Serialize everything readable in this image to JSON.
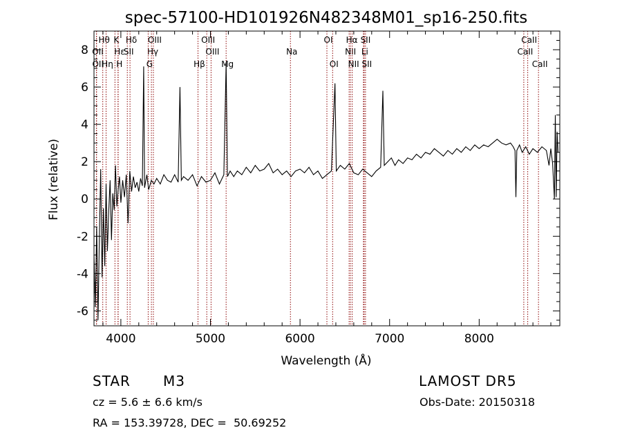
{
  "chart_data": {
    "type": "line",
    "title": "spec-57100-HD101926N482348M01_sp16-250.fits",
    "xlabel": "Wavelength (Å)",
    "ylabel": "Flux (relative)",
    "xlim": [
      3700,
      8900
    ],
    "ylim": [
      -6.8,
      9.0
    ],
    "x_ticks": [
      4000,
      5000,
      6000,
      7000,
      8000
    ],
    "y_ticks": [
      -6,
      -4,
      -2,
      0,
      2,
      4,
      6,
      8
    ],
    "grid": false,
    "legend": "none",
    "line_color": "#000000",
    "marker_color": "#8b0000",
    "series": [
      {
        "points": [
          [
            3700,
            -3.0
          ],
          [
            3715,
            -5.8
          ],
          [
            3730,
            -1.5
          ],
          [
            3745,
            -6.5
          ],
          [
            3760,
            -2.0
          ],
          [
            3775,
            1.6
          ],
          [
            3790,
            -4.2
          ],
          [
            3805,
            -0.5
          ],
          [
            3820,
            -3.6
          ],
          [
            3835,
            0.8
          ],
          [
            3850,
            -2.8
          ],
          [
            3865,
            -0.6
          ],
          [
            3880,
            1.0
          ],
          [
            3895,
            -2.2
          ],
          [
            3910,
            0.3
          ],
          [
            3925,
            -0.6
          ],
          [
            3940,
            1.8
          ],
          [
            3955,
            -0.4
          ],
          [
            3970,
            0.5
          ],
          [
            3985,
            1.2
          ],
          [
            4000,
            -0.2
          ],
          [
            4020,
            1.0
          ],
          [
            4040,
            0.1
          ],
          [
            4060,
            1.3
          ],
          [
            4080,
            -1.3
          ],
          [
            4100,
            1.5
          ],
          [
            4120,
            0.4
          ],
          [
            4140,
            1.2
          ],
          [
            4160,
            0.6
          ],
          [
            4180,
            0.9
          ],
          [
            4200,
            0.4
          ],
          [
            4220,
            1.1
          ],
          [
            4240,
            0.7
          ],
          [
            4255,
            7.1
          ],
          [
            4265,
            0.6
          ],
          [
            4290,
            1.3
          ],
          [
            4310,
            0.5
          ],
          [
            4340,
            1.0
          ],
          [
            4370,
            0.8
          ],
          [
            4400,
            1.1
          ],
          [
            4440,
            0.8
          ],
          [
            4480,
            1.3
          ],
          [
            4520,
            1.0
          ],
          [
            4560,
            0.9
          ],
          [
            4600,
            1.3
          ],
          [
            4640,
            0.9
          ],
          [
            4660,
            6.0
          ],
          [
            4675,
            1.0
          ],
          [
            4700,
            1.2
          ],
          [
            4750,
            1.0
          ],
          [
            4800,
            1.3
          ],
          [
            4850,
            0.7
          ],
          [
            4900,
            1.2
          ],
          [
            4950,
            0.9
          ],
          [
            5000,
            1.0
          ],
          [
            5050,
            1.4
          ],
          [
            5100,
            0.8
          ],
          [
            5150,
            1.3
          ],
          [
            5175,
            7.3
          ],
          [
            5190,
            1.2
          ],
          [
            5220,
            1.5
          ],
          [
            5260,
            1.2
          ],
          [
            5300,
            1.5
          ],
          [
            5350,
            1.3
          ],
          [
            5400,
            1.7
          ],
          [
            5450,
            1.4
          ],
          [
            5500,
            1.8
          ],
          [
            5550,
            1.5
          ],
          [
            5600,
            1.6
          ],
          [
            5650,
            1.9
          ],
          [
            5700,
            1.4
          ],
          [
            5750,
            1.6
          ],
          [
            5800,
            1.3
          ],
          [
            5850,
            1.5
          ],
          [
            5900,
            1.2
          ],
          [
            5950,
            1.5
          ],
          [
            6000,
            1.6
          ],
          [
            6050,
            1.4
          ],
          [
            6100,
            1.7
          ],
          [
            6150,
            1.3
          ],
          [
            6200,
            1.5
          ],
          [
            6250,
            1.1
          ],
          [
            6300,
            1.3
          ],
          [
            6350,
            1.5
          ],
          [
            6390,
            6.2
          ],
          [
            6405,
            1.5
          ],
          [
            6450,
            1.8
          ],
          [
            6500,
            1.6
          ],
          [
            6550,
            1.9
          ],
          [
            6600,
            1.4
          ],
          [
            6650,
            1.3
          ],
          [
            6700,
            1.6
          ],
          [
            6750,
            1.4
          ],
          [
            6800,
            1.2
          ],
          [
            6850,
            1.5
          ],
          [
            6900,
            1.7
          ],
          [
            6925,
            5.8
          ],
          [
            6940,
            1.8
          ],
          [
            6980,
            2.0
          ],
          [
            7020,
            2.2
          ],
          [
            7060,
            1.8
          ],
          [
            7100,
            2.1
          ],
          [
            7150,
            1.9
          ],
          [
            7200,
            2.2
          ],
          [
            7250,
            2.1
          ],
          [
            7300,
            2.4
          ],
          [
            7350,
            2.2
          ],
          [
            7400,
            2.5
          ],
          [
            7450,
            2.4
          ],
          [
            7500,
            2.7
          ],
          [
            7550,
            2.5
          ],
          [
            7600,
            2.3
          ],
          [
            7650,
            2.6
          ],
          [
            7700,
            2.4
          ],
          [
            7750,
            2.7
          ],
          [
            7800,
            2.5
          ],
          [
            7850,
            2.8
          ],
          [
            7900,
            2.6
          ],
          [
            7950,
            2.9
          ],
          [
            8000,
            2.7
          ],
          [
            8050,
            2.9
          ],
          [
            8100,
            2.8
          ],
          [
            8150,
            3.0
          ],
          [
            8200,
            3.2
          ],
          [
            8250,
            3.0
          ],
          [
            8300,
            2.9
          ],
          [
            8350,
            3.0
          ],
          [
            8380,
            2.8
          ],
          [
            8400,
            2.6
          ],
          [
            8410,
            0.1
          ],
          [
            8420,
            2.6
          ],
          [
            8450,
            2.9
          ],
          [
            8480,
            2.5
          ],
          [
            8520,
            2.8
          ],
          [
            8560,
            2.4
          ],
          [
            8600,
            2.7
          ],
          [
            8650,
            2.5
          ],
          [
            8700,
            2.8
          ],
          [
            8750,
            2.6
          ],
          [
            8780,
            1.8
          ],
          [
            8800,
            2.7
          ],
          [
            8820,
            1.9
          ],
          [
            8840,
            0.0
          ],
          [
            8850,
            4.5
          ],
          [
            8860,
            0.1
          ],
          [
            8870,
            3.6
          ],
          [
            8880,
            2.5
          ]
        ]
      }
    ],
    "line_markers": [
      {
        "label": "Hθ",
        "wavelength": 3798,
        "row": 0
      },
      {
        "label": "OII",
        "wavelength": 3727,
        "row": 1
      },
      {
        "label": "OII",
        "wavelength": 3729,
        "row": 2
      },
      {
        "label": "Hη",
        "wavelength": 3835,
        "row": 2
      },
      {
        "label": "K",
        "wavelength": 3934,
        "row": 0
      },
      {
        "label": "Hε",
        "wavelength": 3970,
        "row": 1
      },
      {
        "label": "H",
        "wavelength": 3968,
        "row": 2
      },
      {
        "label": "Hδ",
        "wavelength": 4102,
        "row": 0
      },
      {
        "label": "SII",
        "wavelength": 4072,
        "row": 1
      },
      {
        "label": "OIII",
        "wavelength": 4363,
        "row": 0
      },
      {
        "label": "Hγ",
        "wavelength": 4341,
        "row": 1
      },
      {
        "label": "G",
        "wavelength": 4305,
        "row": 2
      },
      {
        "label": "OIII",
        "wavelength": 4959,
        "row": 0
      },
      {
        "label": "OIII",
        "wavelength": 5007,
        "row": 1
      },
      {
        "label": "Hβ",
        "wavelength": 4861,
        "row": 2
      },
      {
        "label": "Mg",
        "wavelength": 5175,
        "row": 2
      },
      {
        "label": "Na",
        "wavelength": 5893,
        "row": 1
      },
      {
        "label": "OI",
        "wavelength": 6300,
        "row": 0
      },
      {
        "label": "OI",
        "wavelength": 6364,
        "row": 2
      },
      {
        "label": "Hα",
        "wavelength": 6563,
        "row": 0
      },
      {
        "label": "NII",
        "wavelength": 6548,
        "row": 1
      },
      {
        "label": "NII",
        "wavelength": 6583,
        "row": 2
      },
      {
        "label": "SII",
        "wavelength": 6716,
        "row": 0
      },
      {
        "label": "Li",
        "wavelength": 6708,
        "row": 1
      },
      {
        "label": "SII",
        "wavelength": 6731,
        "row": 2
      },
      {
        "label": "CaII",
        "wavelength": 8542,
        "row": 0
      },
      {
        "label": "CaII",
        "wavelength": 8498,
        "row": 1
      },
      {
        "label": "CaII",
        "wavelength": 8662,
        "row": 2
      }
    ]
  },
  "info": {
    "object_type": "STAR",
    "object_class": "M3",
    "survey": "LAMOST DR5",
    "cz": "cz = 5.6 ± 6.6 km/s",
    "obs_date": "Obs-Date: 20150318",
    "ra_dec": "RA = 153.39728, DEC =  50.69252"
  }
}
